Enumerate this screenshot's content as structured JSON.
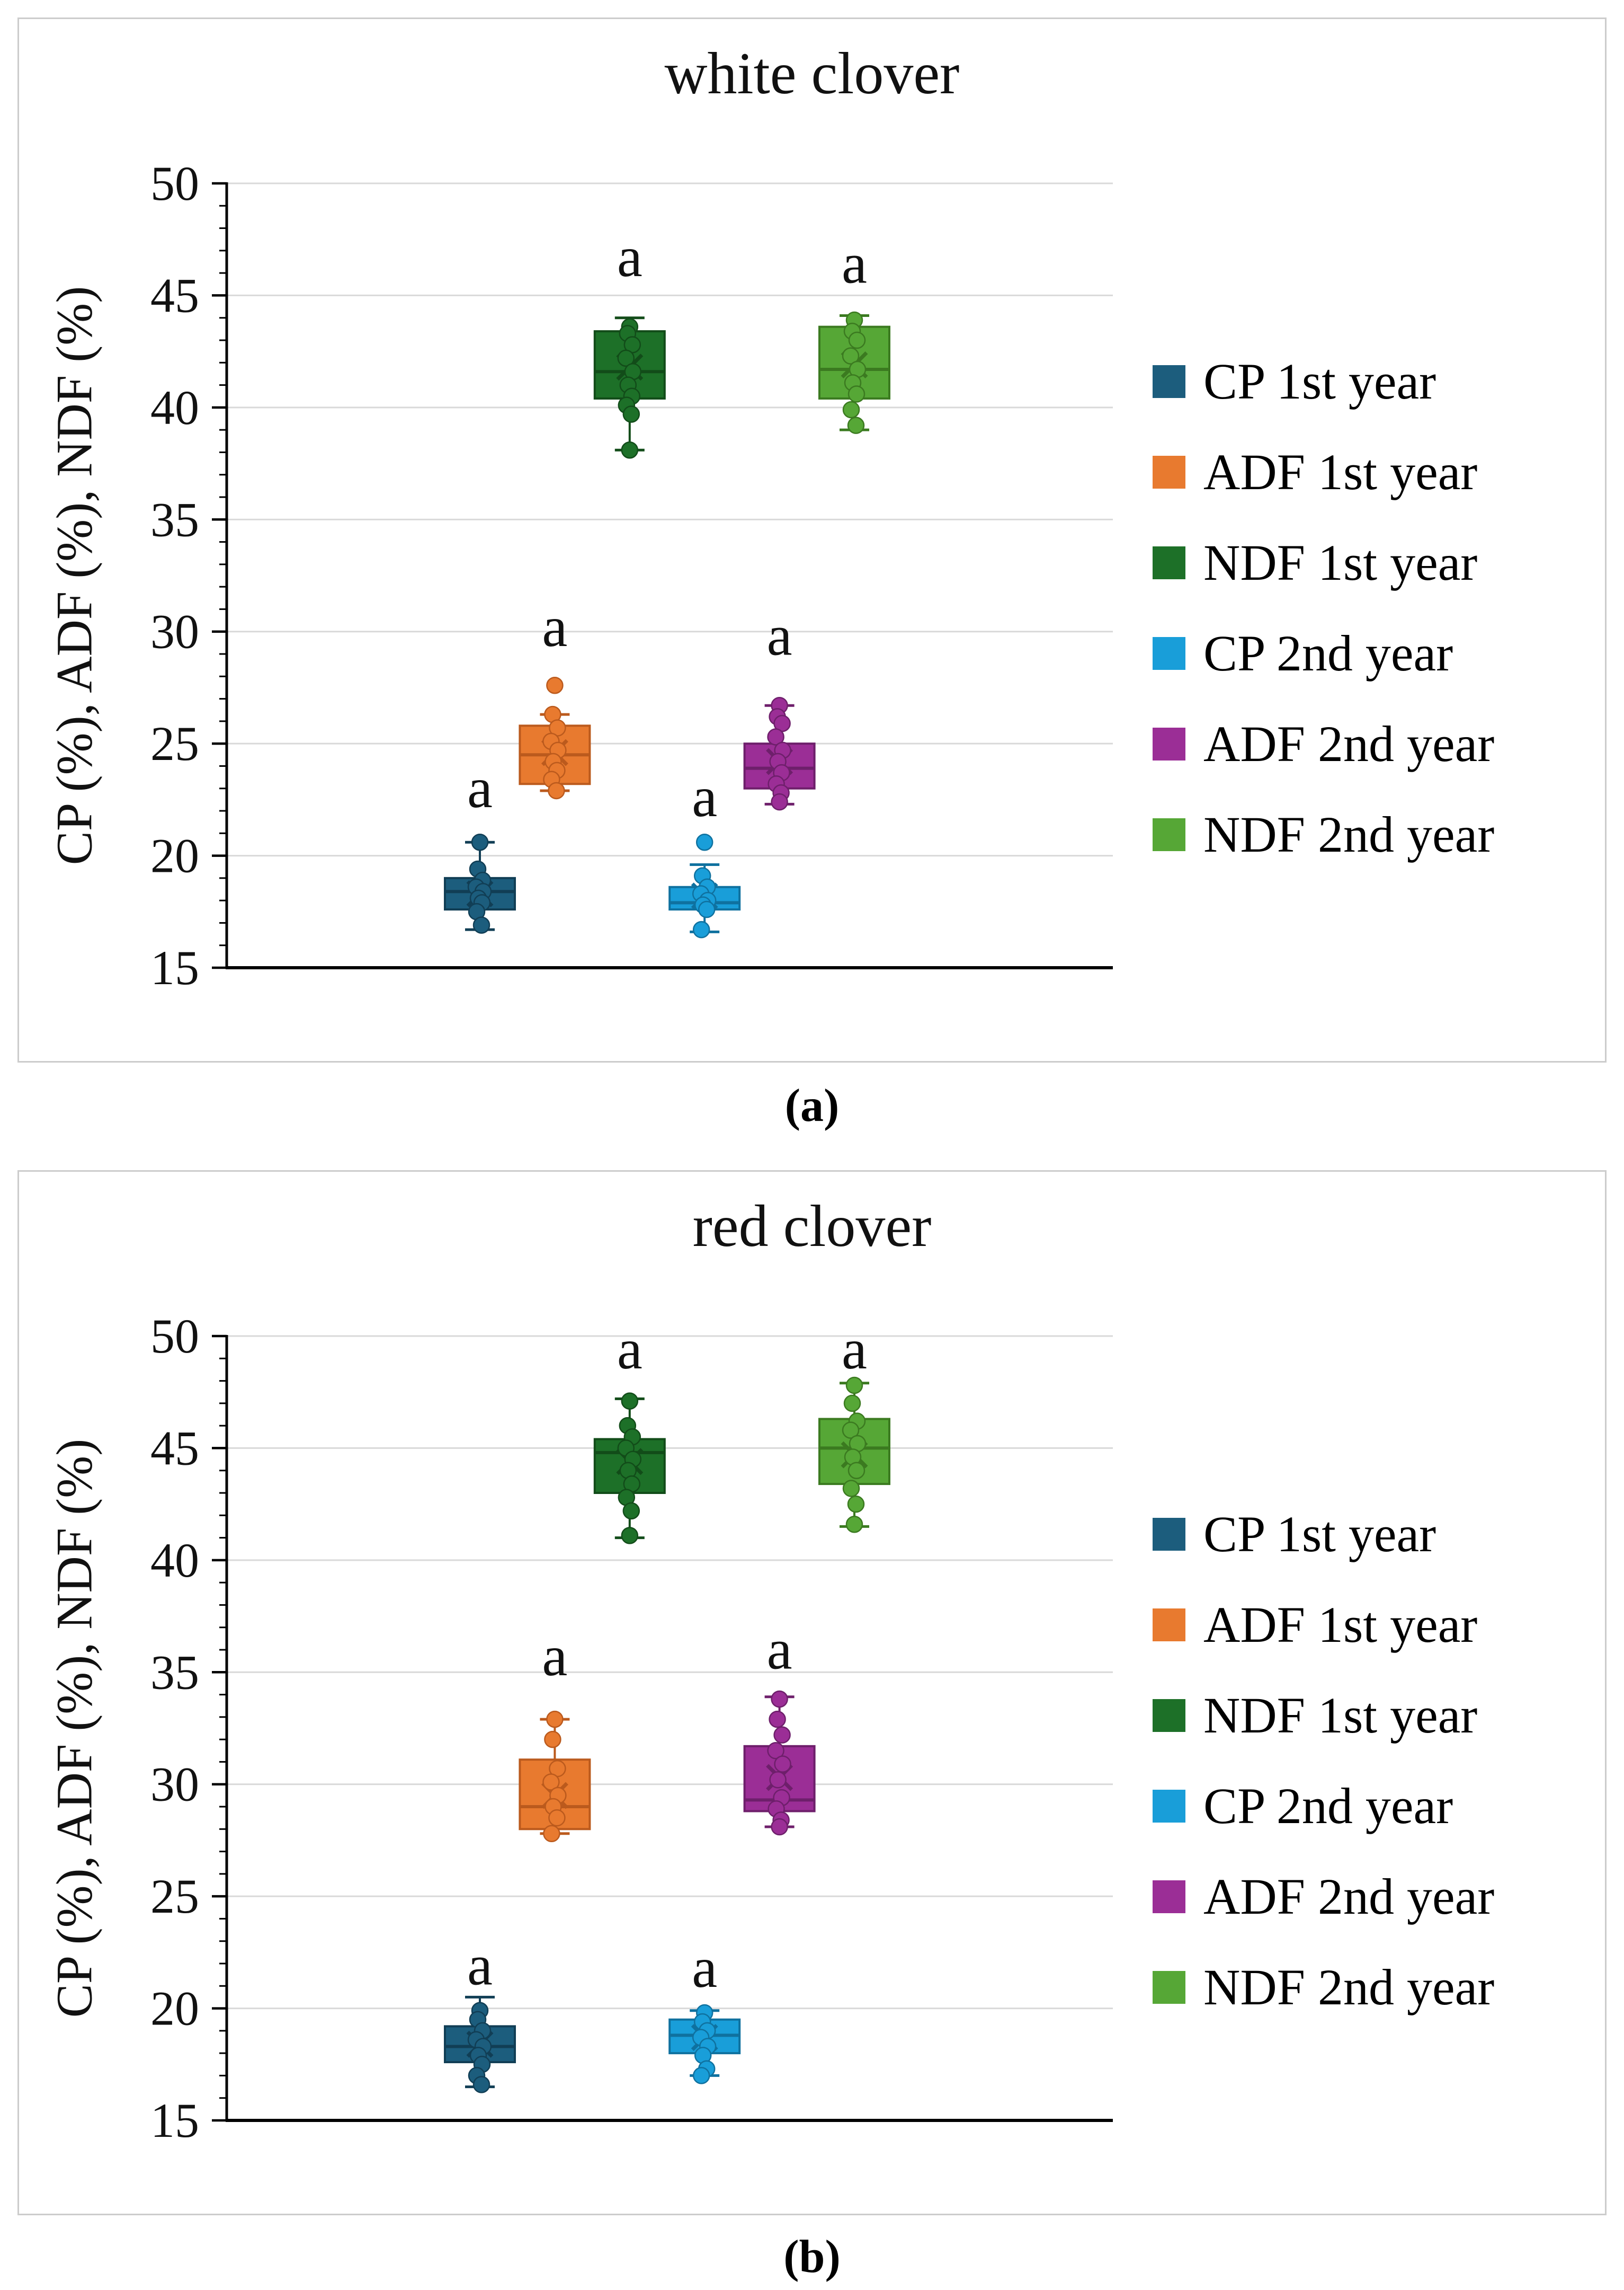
{
  "figure": {
    "background": "#FFFFFF",
    "panel_border_color": "#CCCCCC",
    "grid_color": "#D9D9D9",
    "axis_color": "#000000",
    "text_color": "#111111"
  },
  "chart_data": [
    {
      "type": "box",
      "title": "white clover",
      "caption": "(a)",
      "ylabel": "CP (%), ADF (%), NDF (%)",
      "ylim": [
        15,
        50
      ],
      "y_ticks": [
        15,
        20,
        25,
        30,
        35,
        40,
        45,
        50
      ],
      "y_minor_step": 1,
      "grid": "horizontal-major",
      "legend_position": "right",
      "legend": [
        {
          "label": "CP 1st year",
          "color": "#1C5D7D"
        },
        {
          "label": "ADF 1st year",
          "color": "#E87A2F"
        },
        {
          "label": "NDF 1st year",
          "color": "#1D7028"
        },
        {
          "label": "CP 2nd year",
          "color": "#199ED9"
        },
        {
          "label": "ADF 2nd year",
          "color": "#9B2E96"
        },
        {
          "label": "NDF 2nd year",
          "color": "#56A736"
        }
      ],
      "series": [
        {
          "name": "CP 1st year",
          "color": "#1C5D7D",
          "border": "#113E55",
          "q1": 17.6,
          "median": 18.4,
          "q3": 19.0,
          "mean": 18.3,
          "whisker_low": 16.7,
          "whisker_high": 20.6,
          "points": [
            20.6,
            19.4,
            18.9,
            18.6,
            18.4,
            18.1,
            17.9,
            17.5,
            16.9
          ],
          "sig_letter": "a",
          "sig_letter_y": 23.0
        },
        {
          "name": "ADF 1st year",
          "color": "#E87A2F",
          "border": "#BB5A1D",
          "q1": 23.2,
          "median": 24.5,
          "q3": 25.8,
          "mean": 24.6,
          "whisker_low": 22.9,
          "whisker_high": 26.3,
          "points": [
            27.6,
            26.3,
            25.7,
            25.1,
            24.7,
            24.2,
            23.8,
            23.4,
            22.9
          ],
          "sig_letter": "a",
          "sig_letter_y": 30.2
        },
        {
          "name": "NDF 1st year",
          "color": "#1D7028",
          "border": "#124C19",
          "q1": 40.4,
          "median": 41.6,
          "q3": 43.4,
          "mean": 41.8,
          "whisker_low": 38.1,
          "whisker_high": 44.0,
          "points": [
            43.6,
            43.3,
            42.8,
            42.2,
            41.6,
            41.0,
            40.5,
            40.1,
            39.7,
            38.1
          ],
          "sig_letter": "a",
          "sig_letter_y": 46.7
        },
        {
          "name": "CP 2nd year",
          "color": "#199ED9",
          "border": "#0F719F",
          "q1": 17.6,
          "median": 17.9,
          "q3": 18.6,
          "mean": 18.2,
          "whisker_low": 16.6,
          "whisker_high": 19.6,
          "points": [
            20.6,
            19.1,
            18.6,
            18.3,
            18.0,
            17.8,
            17.6,
            16.7
          ],
          "sig_letter": "a",
          "sig_letter_y": 22.6
        },
        {
          "name": "ADF 2nd year",
          "color": "#9B2E96",
          "border": "#6E1F6B",
          "q1": 23.0,
          "median": 23.9,
          "q3": 25.0,
          "mean": 24.2,
          "whisker_low": 22.3,
          "whisker_high": 26.7,
          "points": [
            26.7,
            26.2,
            25.9,
            25.3,
            24.7,
            24.2,
            23.7,
            23.2,
            22.8,
            22.4
          ],
          "sig_letter": "a",
          "sig_letter_y": 29.8
        },
        {
          "name": "NDF 2nd year",
          "color": "#56A736",
          "border": "#3B7A20",
          "q1": 40.4,
          "median": 41.7,
          "q3": 43.6,
          "mean": 41.9,
          "whisker_low": 39.0,
          "whisker_high": 44.1,
          "points": [
            43.9,
            43.4,
            43.0,
            42.3,
            41.7,
            41.1,
            40.6,
            39.9,
            39.2
          ],
          "sig_letter": "a",
          "sig_letter_y": 46.4
        }
      ]
    },
    {
      "type": "box",
      "title": "red clover",
      "caption": "(b)",
      "ylabel": "CP (%), ADF (%), NDF (%)",
      "ylim": [
        15,
        50
      ],
      "y_ticks": [
        15,
        20,
        25,
        30,
        35,
        40,
        45,
        50
      ],
      "y_minor_step": 1,
      "grid": "horizontal-major",
      "legend_position": "right",
      "legend": [
        {
          "label": "CP 1st year",
          "color": "#1C5D7D"
        },
        {
          "label": "ADF 1st year",
          "color": "#E87A2F"
        },
        {
          "label": "NDF 1st year",
          "color": "#1D7028"
        },
        {
          "label": "CP 2nd year",
          "color": "#199ED9"
        },
        {
          "label": "ADF 2nd year",
          "color": "#9B2E96"
        },
        {
          "label": "NDF 2nd year",
          "color": "#56A736"
        }
      ],
      "series": [
        {
          "name": "CP 1st year",
          "color": "#1C5D7D",
          "border": "#113E55",
          "q1": 17.6,
          "median": 18.3,
          "q3": 19.2,
          "mean": 18.4,
          "whisker_low": 16.5,
          "whisker_high": 20.5,
          "points": [
            19.9,
            19.5,
            19.0,
            18.6,
            18.3,
            17.9,
            17.5,
            17.0,
            16.6
          ],
          "sig_letter": "a",
          "sig_letter_y": 21.9
        },
        {
          "name": "ADF 1st year",
          "color": "#E87A2F",
          "border": "#BB5A1D",
          "q1": 28.0,
          "median": 29.0,
          "q3": 31.1,
          "mean": 29.5,
          "whisker_low": 27.8,
          "whisker_high": 32.9,
          "points": [
            32.9,
            32.0,
            30.7,
            30.1,
            29.5,
            29.0,
            28.5,
            27.8
          ],
          "sig_letter": "a",
          "sig_letter_y": 35.7
        },
        {
          "name": "NDF 1st year",
          "color": "#1D7028",
          "border": "#124C19",
          "q1": 43.0,
          "median": 44.8,
          "q3": 45.4,
          "mean": 44.4,
          "whisker_low": 41.0,
          "whisker_high": 47.2,
          "points": [
            47.1,
            46.0,
            45.5,
            45.0,
            44.5,
            44.0,
            43.4,
            42.8,
            42.2,
            41.1
          ],
          "sig_letter": "a",
          "sig_letter_y": 49.4
        },
        {
          "name": "CP 2nd year",
          "color": "#199ED9",
          "border": "#0F719F",
          "q1": 18.0,
          "median": 18.8,
          "q3": 19.5,
          "mean": 18.7,
          "whisker_low": 17.0,
          "whisker_high": 19.9,
          "points": [
            19.8,
            19.4,
            19.0,
            18.7,
            18.3,
            17.9,
            17.3,
            17.0
          ],
          "sig_letter": "a",
          "sig_letter_y": 21.8
        },
        {
          "name": "ADF 2nd year",
          "color": "#9B2E96",
          "border": "#6E1F6B",
          "q1": 28.8,
          "median": 29.3,
          "q3": 31.7,
          "mean": 30.3,
          "whisker_low": 28.1,
          "whisker_high": 33.9,
          "points": [
            33.8,
            32.9,
            32.2,
            31.5,
            30.9,
            30.2,
            29.4,
            28.9,
            28.4,
            28.1
          ],
          "sig_letter": "a",
          "sig_letter_y": 36.0
        },
        {
          "name": "NDF 2nd year",
          "color": "#56A736",
          "border": "#3B7A20",
          "q1": 43.4,
          "median": 45.0,
          "q3": 46.3,
          "mean": 44.7,
          "whisker_low": 41.5,
          "whisker_high": 47.9,
          "points": [
            47.8,
            47.0,
            46.2,
            45.8,
            45.2,
            44.6,
            44.0,
            43.2,
            42.5,
            41.6
          ],
          "sig_letter": "a",
          "sig_letter_y": 49.4
        }
      ]
    }
  ]
}
